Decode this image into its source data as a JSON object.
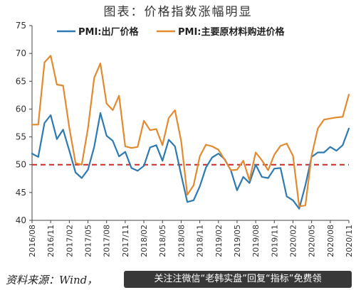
{
  "title": "图表：价格指数涨幅明显",
  "source": "资料来源：Wind，",
  "watermark": "关注注微信“老韩实盘”回复“指标”免费领",
  "chart_data": {
    "type": "line",
    "x": [
      "2016/08",
      "2016/09",
      "2016/10",
      "2016/11",
      "2016/12",
      "2017/01",
      "2017/02",
      "2017/03",
      "2017/04",
      "2017/05",
      "2017/06",
      "2017/07",
      "2017/08",
      "2017/09",
      "2017/10",
      "2017/11",
      "2017/12",
      "2018/01",
      "2018/02",
      "2018/03",
      "2018/04",
      "2018/05",
      "2018/06",
      "2018/07",
      "2018/08",
      "2018/09",
      "2018/10",
      "2018/11",
      "2018/12",
      "2019/01",
      "2019/02",
      "2019/03",
      "2019/04",
      "2019/05",
      "2019/06",
      "2019/07",
      "2019/08",
      "2019/09",
      "2019/10",
      "2019/11",
      "2019/12",
      "2020/01",
      "2020/02",
      "2020/03",
      "2020/04",
      "2020/05",
      "2020/06",
      "2020/07",
      "2020/08",
      "2020/09",
      "2020/10",
      "2020/11"
    ],
    "xticks": [
      "2016/08",
      "2016/11",
      "2017/02",
      "2017/05",
      "2017/08",
      "2017/11",
      "2018/02",
      "2018/05",
      "2018/08",
      "2018/11",
      "2019/02",
      "2019/05",
      "2019/08",
      "2019/11",
      "2020/02",
      "2020/05",
      "2020/08",
      "2020/11"
    ],
    "series": [
      {
        "name": "PMI:出厂价格",
        "color": "#2e7ab0",
        "values": [
          52.0,
          51.4,
          57.5,
          58.9,
          54.6,
          56.3,
          52.5,
          48.6,
          47.6,
          49.1,
          53.2,
          59.3,
          55.2,
          54.3,
          51.5,
          52.3,
          49.4,
          48.9,
          49.8,
          53.1,
          53.5,
          50.7,
          54.5,
          53.3,
          48.2,
          43.3,
          43.6,
          46.1,
          49.5,
          51.3,
          52.0,
          51.0,
          49.0,
          45.4,
          47.8,
          46.7,
          50.0,
          47.8,
          47.6,
          49.3,
          49.4,
          44.3,
          43.6,
          42.1,
          46.3,
          51.4,
          52.2,
          52.2,
          53.2,
          52.5,
          53.5,
          56.5
        ]
      },
      {
        "name": "PMI:主要原材料购进价格",
        "color": "#e28a2f",
        "values": [
          57.2,
          57.2,
          68.4,
          69.6,
          64.4,
          64.2,
          56.6,
          50.3,
          50.0,
          56.5,
          65.6,
          68.2,
          61.0,
          59.8,
          62.4,
          53.3,
          53.0,
          53.2,
          57.9,
          56.2,
          56.4,
          53.5,
          58.4,
          59.8,
          54.3,
          44.6,
          46.3,
          51.5,
          53.6,
          53.3,
          52.7,
          50.9,
          49.0,
          49.1,
          50.7,
          47.2,
          52.2,
          50.8,
          49.0,
          51.8,
          53.4,
          53.8,
          51.6,
          42.5,
          42.7,
          51.6,
          56.5,
          58.1,
          58.3,
          58.5,
          58.6,
          62.6
        ]
      }
    ],
    "reference_line": {
      "value": 50,
      "color": "#d7261e",
      "style": "dashed"
    },
    "ylim": [
      40,
      75
    ],
    "yticks": [
      40,
      45,
      50,
      55,
      60,
      65,
      70,
      75
    ],
    "legend": "top",
    "grid": false
  }
}
